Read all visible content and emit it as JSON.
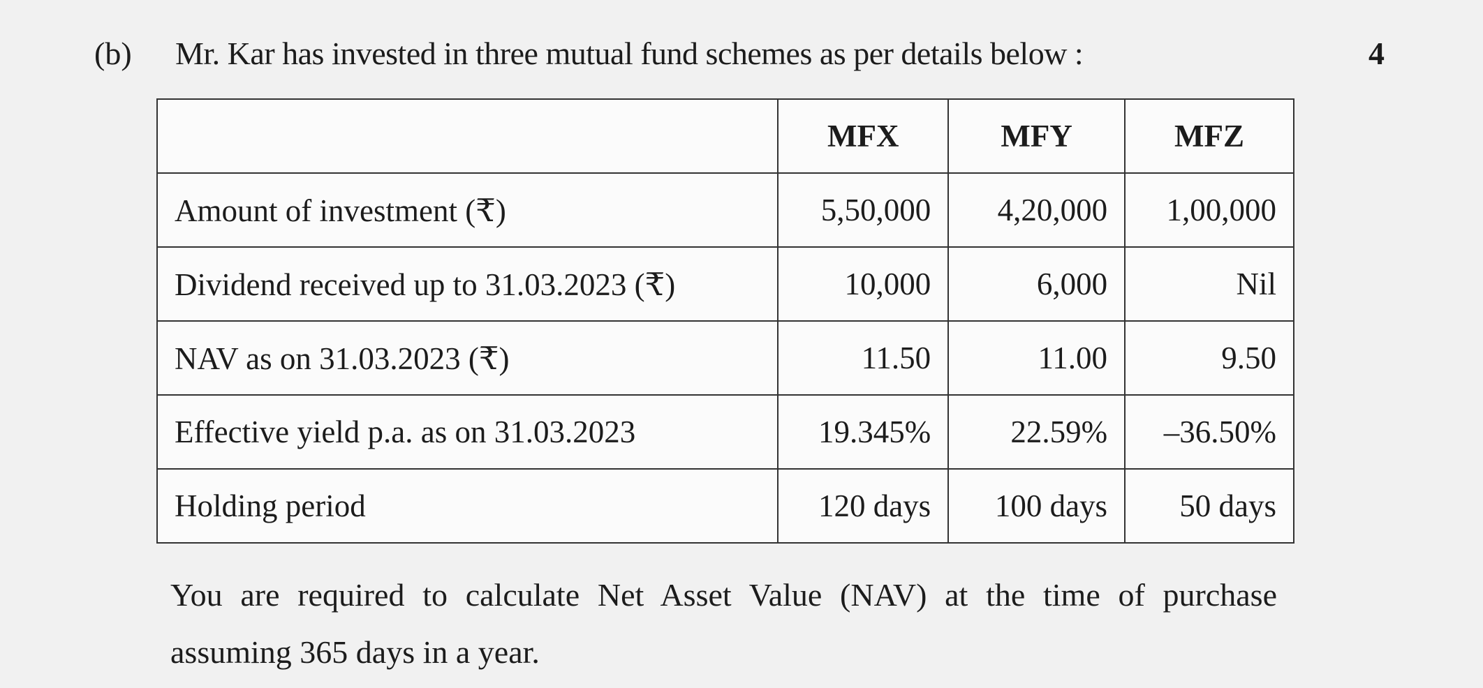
{
  "question": {
    "label": "(b)",
    "text": "Mr. Kar has invested in three mutual fund schemes as per details below :",
    "marks": "4"
  },
  "table": {
    "headers": [
      "",
      "MFX",
      "MFY",
      "MFZ"
    ],
    "rows": [
      {
        "label": "Amount of investment (₹)",
        "values": [
          "5,50,000",
          "4,20,000",
          "1,00,000"
        ]
      },
      {
        "label": "Dividend received up to 31.03.2023 (₹)",
        "values": [
          "10,000",
          "6,000",
          "Nil"
        ]
      },
      {
        "label": "NAV as on 31.03.2023 (₹)",
        "values": [
          "11.50",
          "11.00",
          "9.50"
        ]
      },
      {
        "label": "Effective yield p.a. as on 31.03.2023",
        "values": [
          "19.345%",
          "22.59%",
          "–36.50%"
        ]
      },
      {
        "label": "Holding period",
        "values": [
          "120 days",
          "100 days",
          "50 days"
        ]
      }
    ]
  },
  "instruction": "You are required to calculate Net Asset Value (NAV) at the time of purchase assuming 365 days in a year."
}
